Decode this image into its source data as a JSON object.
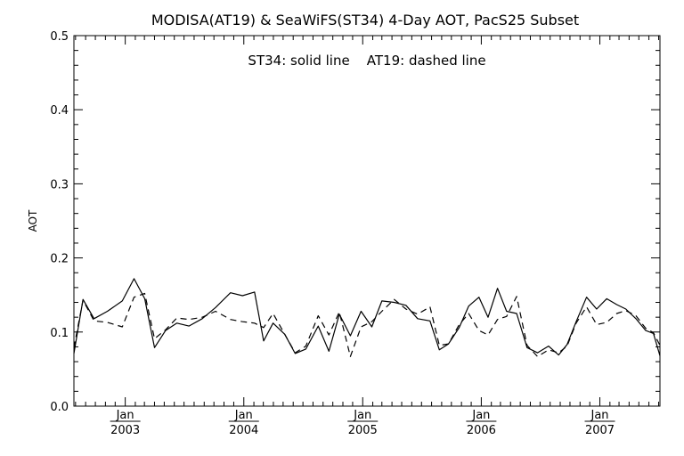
{
  "chart_data": {
    "type": "line",
    "title": "MODISA(AT19) & SeaWiFS(ST34) 4-Day AOT, PacS25 Subset",
    "annotation": "ST34: solid line    AT19: dashed line",
    "ylabel": "AOT",
    "xlabel": "",
    "ylim": [
      0.0,
      0.5
    ],
    "xlim": [
      "2002-07-27",
      "2007-07-05"
    ],
    "y_ticks": [
      "0.0",
      "0.1",
      "0.2",
      "0.3",
      "0.4",
      "0.5"
    ],
    "x_ticks": [
      {
        "month": "Jan",
        "year": "2003",
        "date": "2003-01-01"
      },
      {
        "month": "Jan",
        "year": "2004",
        "date": "2004-01-01"
      },
      {
        "month": "Jan",
        "year": "2005",
        "date": "2005-01-01"
      },
      {
        "month": "Jan",
        "year": "2006",
        "date": "2006-01-01"
      },
      {
        "month": "Jan",
        "year": "2007",
        "date": "2007-01-01"
      }
    ],
    "grid": false,
    "series": [
      {
        "name": "ST34",
        "style": "solid",
        "color": "#000000",
        "x": [
          "2002-07-27",
          "2002-08-24",
          "2002-09-27",
          "2002-11-07",
          "2002-12-23",
          "2003-01-28",
          "2003-03-02",
          "2003-04-01",
          "2003-05-05",
          "2003-06-09",
          "2003-07-16",
          "2003-08-26",
          "2003-10-06",
          "2003-11-21",
          "2003-12-28",
          "2004-02-03",
          "2004-03-02",
          "2004-03-31",
          "2004-05-06",
          "2004-06-07",
          "2004-07-10",
          "2004-08-17",
          "2004-09-19",
          "2004-10-21",
          "2004-11-24",
          "2004-12-27",
          "2005-01-29",
          "2005-03-01",
          "2005-04-08",
          "2005-05-14",
          "2005-06-19",
          "2005-07-27",
          "2005-08-25",
          "2005-09-22",
          "2005-10-25",
          "2005-11-23",
          "2005-12-25",
          "2006-01-22",
          "2006-02-20",
          "2006-03-20",
          "2006-04-20",
          "2006-05-22",
          "2006-06-23",
          "2006-07-27",
          "2006-08-27",
          "2006-09-22",
          "2006-10-20",
          "2006-11-21",
          "2006-12-22",
          "2007-01-22",
          "2007-02-22",
          "2007-03-22",
          "2007-04-22",
          "2007-05-22",
          "2007-06-15",
          "2007-07-05"
        ],
        "values": [
          0.071,
          0.144,
          0.118,
          0.128,
          0.142,
          0.172,
          0.145,
          0.079,
          0.102,
          0.112,
          0.108,
          0.118,
          0.133,
          0.153,
          0.149,
          0.154,
          0.088,
          0.112,
          0.097,
          0.071,
          0.077,
          0.108,
          0.074,
          0.124,
          0.095,
          0.128,
          0.107,
          0.142,
          0.14,
          0.136,
          0.118,
          0.115,
          0.076,
          0.084,
          0.106,
          0.135,
          0.147,
          0.12,
          0.159,
          0.128,
          0.125,
          0.079,
          0.072,
          0.081,
          0.069,
          0.083,
          0.114,
          0.147,
          0.131,
          0.145,
          0.137,
          0.131,
          0.118,
          0.102,
          0.098,
          0.068
        ]
      },
      {
        "name": "AT19",
        "style": "dashed",
        "color": "#000000",
        "x": [
          "2002-07-27",
          "2002-08-24",
          "2002-09-27",
          "2002-11-07",
          "2002-12-23",
          "2003-01-28",
          "2003-03-02",
          "2003-04-01",
          "2003-05-05",
          "2003-06-09",
          "2003-07-16",
          "2003-08-26",
          "2003-10-06",
          "2003-11-21",
          "2003-12-28",
          "2004-02-03",
          "2004-03-02",
          "2004-03-31",
          "2004-05-06",
          "2004-06-07",
          "2004-07-10",
          "2004-08-17",
          "2004-09-19",
          "2004-10-21",
          "2004-11-24",
          "2004-12-27",
          "2005-01-29",
          "2005-03-01",
          "2005-04-08",
          "2005-05-14",
          "2005-06-19",
          "2005-07-27",
          "2005-08-25",
          "2005-09-22",
          "2005-10-25",
          "2005-11-23",
          "2005-12-25",
          "2006-01-22",
          "2006-02-20",
          "2006-03-20",
          "2006-04-20",
          "2006-05-22",
          "2006-06-23",
          "2006-07-27",
          "2006-08-27",
          "2006-09-22",
          "2006-10-20",
          "2006-11-21",
          "2006-12-22",
          "2007-01-22",
          "2007-02-22",
          "2007-03-22",
          "2007-04-22",
          "2007-05-22",
          "2007-06-15",
          "2007-07-05"
        ],
        "values": [
          0.079,
          0.143,
          0.115,
          0.113,
          0.107,
          0.147,
          0.152,
          0.091,
          0.103,
          0.119,
          0.117,
          0.12,
          0.128,
          0.117,
          0.114,
          0.112,
          0.106,
          0.125,
          0.097,
          0.072,
          0.081,
          0.122,
          0.096,
          0.127,
          0.067,
          0.107,
          0.114,
          0.128,
          0.144,
          0.131,
          0.124,
          0.134,
          0.082,
          0.084,
          0.11,
          0.125,
          0.102,
          0.096,
          0.117,
          0.121,
          0.148,
          0.082,
          0.067,
          0.076,
          0.072,
          0.081,
          0.112,
          0.134,
          0.11,
          0.113,
          0.125,
          0.129,
          0.122,
          0.105,
          0.099,
          0.082
        ]
      }
    ]
  }
}
